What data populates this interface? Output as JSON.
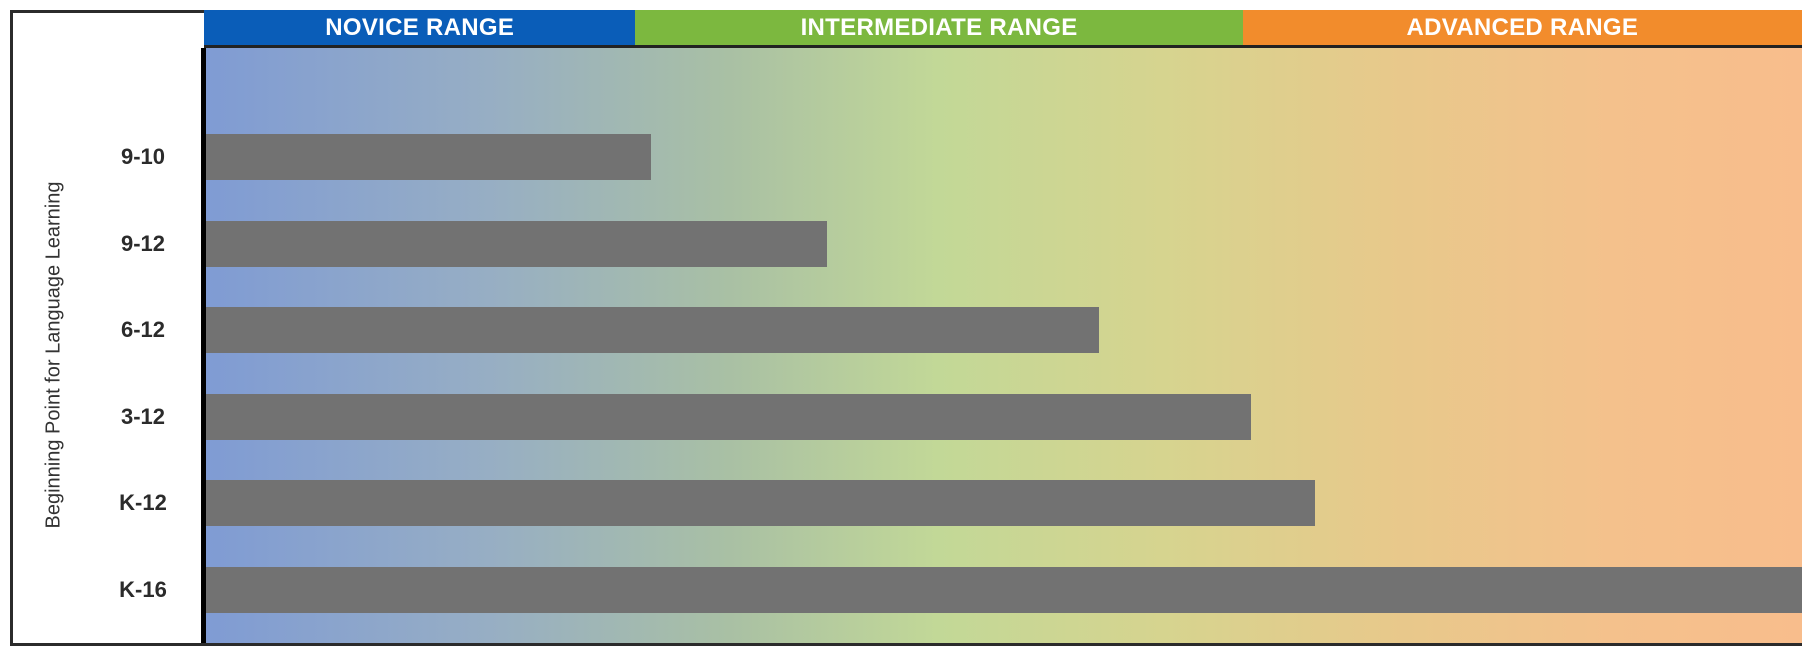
{
  "chart_data": {
    "type": "bar",
    "orientation": "horizontal",
    "ylabel": "Beginning Point for Language Learning",
    "xlabel": "",
    "title": "",
    "xlim": [
      0,
      100
    ],
    "bar_color": "#727272",
    "ranges": [
      {
        "label": "NOVICE RANGE",
        "start": 0,
        "end": 27,
        "color": "#0a5db8"
      },
      {
        "label": "INTERMEDIATE RANGE",
        "start": 27,
        "end": 65,
        "color": "#7cb83f"
      },
      {
        "label": "ADVANCED RANGE",
        "start": 65,
        "end": 100,
        "color": "#f28c2c"
      }
    ],
    "categories": [
      "9-10",
      "9-12",
      "6-12",
      "3-12",
      "K-12",
      "K-16"
    ],
    "values": [
      28,
      39,
      56,
      65.5,
      69.5,
      100
    ]
  }
}
